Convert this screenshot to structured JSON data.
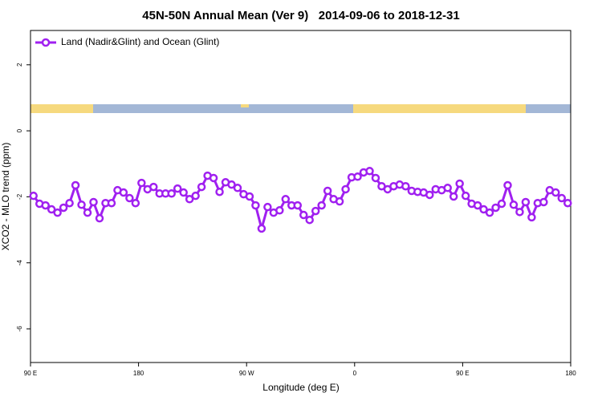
{
  "chart_data": {
    "type": "line",
    "title": "45N-50N Annual Mean (Ver 9)   2014-09-06 to 2018-12-31",
    "x_label": "Longitude (deg E)",
    "y_label": "XCO2 - MLO trend (ppm)",
    "xlim": [
      90,
      540
    ],
    "xticks": [
      {
        "value": 90,
        "label": "90 E"
      },
      {
        "value": 180,
        "label": "180"
      },
      {
        "value": 270,
        "label": "90 W"
      },
      {
        "value": 360,
        "label": "0"
      },
      {
        "value": 450,
        "label": "90 E"
      },
      {
        "value": 540,
        "label": "180"
      }
    ],
    "ylim": [
      -7.02,
      3.04
    ],
    "yticks": [
      2,
      0,
      -2,
      -4,
      -6
    ],
    "legend": "top-left",
    "x": [
      92.5,
      97.5,
      102.5,
      107.5,
      112.5,
      117.5,
      122.5,
      127.5,
      132.5,
      137.5,
      142.5,
      147.5,
      152.5,
      157.5,
      162.5,
      167.5,
      172.5,
      177.5,
      182.5,
      187.5,
      192.5,
      197.5,
      202.5,
      207.5,
      212.5,
      217.5,
      222.5,
      227.5,
      232.5,
      237.5,
      242.5,
      247.5,
      252.5,
      257.5,
      262.5,
      267.5,
      272.5,
      277.5,
      282.5,
      287.5,
      292.5,
      297.5,
      302.5,
      307.5,
      312.5,
      317.5,
      322.5,
      327.5,
      332.5,
      337.5,
      342.5,
      347.5,
      352.5,
      357.5,
      362.5,
      367.5,
      372.5,
      377.5,
      382.5,
      387.5,
      392.5,
      397.5,
      402.5,
      407.5,
      412.5,
      417.5,
      422.5,
      427.5,
      432.5,
      437.5,
      442.5,
      447.5,
      452.5,
      457.5,
      462.5,
      467.5,
      472.5,
      477.5,
      482.5,
      487.5,
      492.5,
      497.5,
      502.5,
      507.5,
      512.5,
      517.5,
      522.5,
      527.5,
      532.5,
      537.5
    ],
    "series": [
      {
        "name": "Land (Nadir&Glint) and Ocean (Glint)",
        "color": "#a020f0",
        "values": [
          -1.97,
          -2.21,
          -2.26,
          -2.38,
          -2.48,
          -2.33,
          -2.19,
          -1.65,
          -2.24,
          -2.48,
          -2.16,
          -2.65,
          -2.19,
          -2.19,
          -1.8,
          -1.87,
          -2.04,
          -2.19,
          -1.58,
          -1.77,
          -1.7,
          -1.9,
          -1.9,
          -1.9,
          -1.75,
          -1.87,
          -2.07,
          -1.97,
          -1.7,
          -1.36,
          -1.43,
          -1.85,
          -1.56,
          -1.63,
          -1.73,
          -1.92,
          -1.99,
          -2.26,
          -2.96,
          -2.31,
          -2.48,
          -2.41,
          -2.07,
          -2.26,
          -2.26,
          -2.55,
          -2.7,
          -2.43,
          -2.26,
          -1.82,
          -2.07,
          -2.14,
          -1.77,
          -1.41,
          -1.39,
          -1.26,
          -1.22,
          -1.43,
          -1.68,
          -1.77,
          -1.68,
          -1.63,
          -1.68,
          -1.82,
          -1.85,
          -1.87,
          -1.94,
          -1.77,
          -1.8,
          -1.73,
          -1.99,
          -1.6,
          -1.97,
          -2.21,
          -2.26,
          -2.38,
          -2.48,
          -2.33,
          -2.21,
          -1.65,
          -2.24,
          -2.46,
          -2.16,
          -2.62,
          -2.19,
          -2.16,
          -1.8,
          -1.87,
          -2.04,
          -2.19
        ]
      }
    ]
  }
}
